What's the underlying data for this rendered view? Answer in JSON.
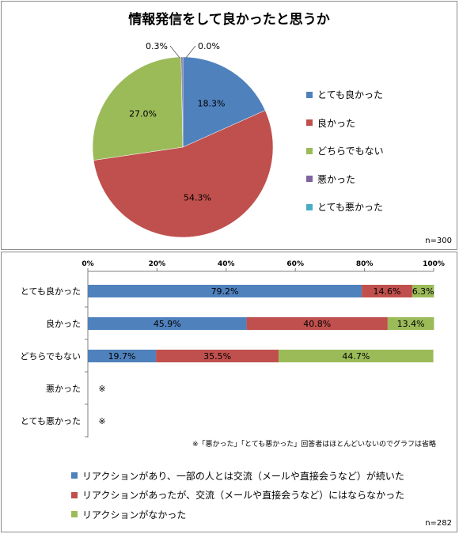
{
  "chart_data": [
    {
      "type": "pie",
      "title": "情報発信をして良かったと思うか",
      "n_label": "n=300",
      "categories": [
        "とても良かった",
        "良かった",
        "どちらでもない",
        "悪かった",
        "とても悪かった"
      ],
      "values": [
        18.3,
        54.3,
        27.0,
        0.3,
        0.0
      ],
      "value_labels": [
        "18.3%",
        "54.3%",
        "27.0%",
        "0.3%",
        "0.0%"
      ],
      "colors": [
        "#4f81bd",
        "#c0504d",
        "#9bbb59",
        "#8064a2",
        "#4bacc6"
      ],
      "legend_position": "right"
    },
    {
      "type": "bar",
      "orientation": "horizontal",
      "stacked": true,
      "n_label": "n=282",
      "categories": [
        "とても良かった",
        "良かった",
        "どちらでもない",
        "悪かった",
        "とても悪かった"
      ],
      "xlim": [
        0,
        100
      ],
      "x_ticks": [
        "0%",
        "20%",
        "40%",
        "60%",
        "80%",
        "100%"
      ],
      "series": [
        {
          "name": "リアクションがあり、一部の人とは交流（メールや直接会うなど）が続いた",
          "values": [
            79.2,
            45.9,
            19.7,
            null,
            null
          ],
          "labels": [
            "79.2%",
            "45.9%",
            "19.7%",
            "",
            ""
          ],
          "color": "#4f81bd"
        },
        {
          "name": "リアクションがあったが、交流（メールや直接会うなど）にはならなかった",
          "values": [
            14.6,
            40.8,
            35.5,
            null,
            null
          ],
          "labels": [
            "14.6%",
            "40.8%",
            "35.5%",
            "",
            ""
          ],
          "color": "#c0504d"
        },
        {
          "name": "リアクションがなかった",
          "values": [
            6.3,
            13.4,
            44.7,
            null,
            null
          ],
          "labels": [
            "6.3%",
            "13.4%",
            "44.7%",
            "",
            ""
          ],
          "color": "#9bbb59"
        }
      ],
      "omitted_marks": [
        "",
        "",
        "",
        "※",
        "※"
      ],
      "note": "※「悪かった」「とても悪かった」回答者はほとんどいないのでグラフは省略",
      "legend_position": "bottom"
    }
  ]
}
